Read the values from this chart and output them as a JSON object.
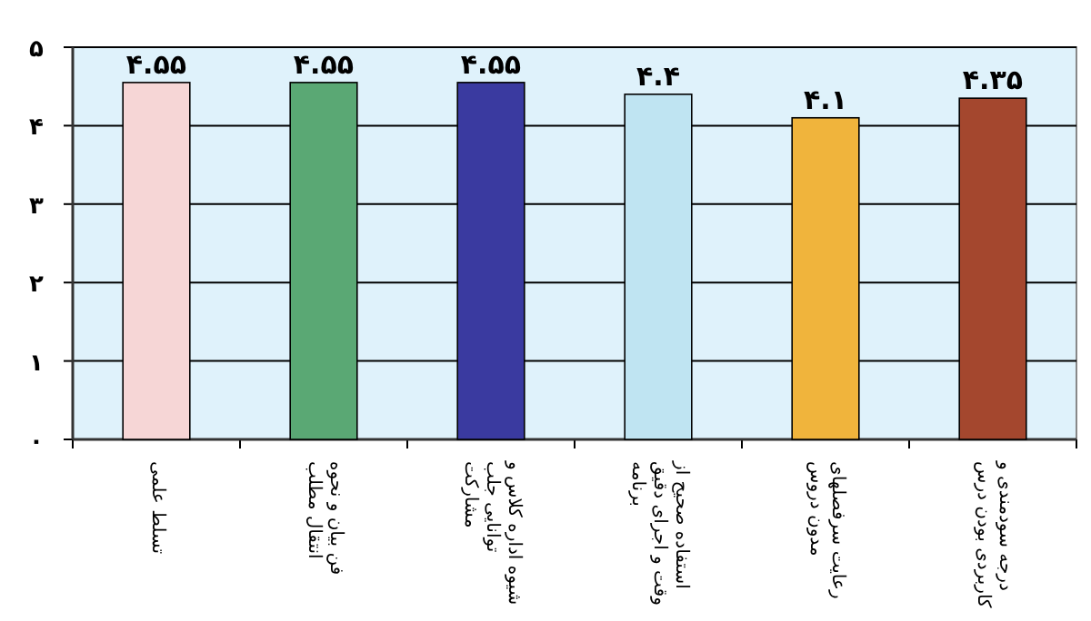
{
  "chart_data": {
    "type": "bar",
    "categories": [
      "تسلط علمی",
      "فن بیان و نحوه انتقال مطلب",
      "شیوه اداره کلاس و توانایی جلب مشارکت",
      "استفاده صحیح از وقت و اجرای دقیق برنامه",
      "رعایت سرفصلهای مدون دروس",
      "درجه سودمندی و کاربردی بودن درس"
    ],
    "values": [
      4.55,
      4.55,
      4.55,
      4.4,
      4.1,
      4.35
    ],
    "value_labels": [
      "۴.۵۵",
      "۴.۵۵",
      "۴.۵۵",
      "۴.۴",
      "۴.۱",
      "۴.۳۵"
    ],
    "colors": [
      "#f6d6d6",
      "#5aa874",
      "#3a3aa0",
      "#bfe4f2",
      "#f0b43c",
      "#a4472e"
    ],
    "ylim": [
      0,
      5
    ],
    "yticks": [
      {
        "value": 0,
        "label": "۰"
      },
      {
        "value": 1,
        "label": "۱"
      },
      {
        "value": 2,
        "label": "۲"
      },
      {
        "value": 3,
        "label": "۳"
      },
      {
        "value": 4,
        "label": "۴"
      },
      {
        "value": 5,
        "label": "۵"
      }
    ],
    "grid": "y"
  }
}
